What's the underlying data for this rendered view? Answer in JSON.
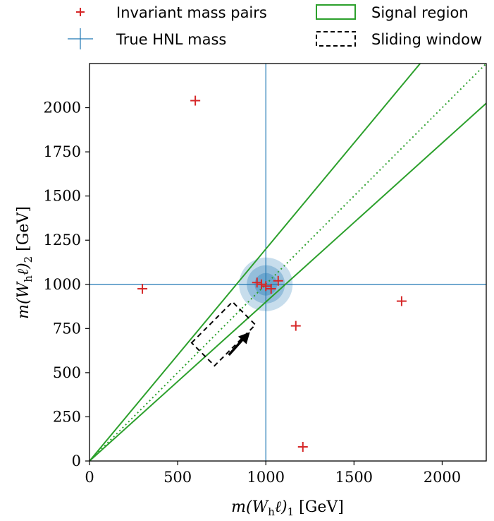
{
  "chart_data": {
    "type": "scatter",
    "xlabel": "m(Wₕℓ)₁ [GeV]",
    "ylabel": "m(Wₕℓ)₂ [GeV]",
    "xlabel_parts": [
      "m(W",
      "h",
      "ℓ)",
      "1",
      " [GeV]"
    ],
    "ylabel_parts": [
      "m(W",
      "h",
      "ℓ)",
      "2",
      " [GeV]"
    ],
    "xlim": [
      0,
      2250
    ],
    "ylim": [
      0,
      2250
    ],
    "xticks": [
      0,
      500,
      1000,
      1500,
      2000
    ],
    "yticks": [
      0,
      250,
      500,
      750,
      1000,
      1250,
      1500,
      1750,
      2000
    ],
    "xtick_labels": [
      "0",
      "500",
      "1000",
      "1500",
      "2000"
    ],
    "ytick_labels": [
      "0",
      "250",
      "500",
      "750",
      "1000",
      "1250",
      "1500",
      "1750",
      "2000"
    ],
    "grid": false,
    "legend_position": "top, above plot (2 columns)",
    "legend": [
      {
        "label": "Invariant mass pairs",
        "kind": "red-plus"
      },
      {
        "label": "True HNL mass",
        "kind": "blue-cross"
      },
      {
        "label": "Signal region",
        "kind": "green-box"
      },
      {
        "label": "Sliding window",
        "kind": "dashed-box"
      }
    ],
    "series": [
      {
        "name": "Invariant mass pairs",
        "color": "#d62728",
        "points": [
          [
            600,
            2040
          ],
          [
            300,
            975
          ],
          [
            1770,
            905
          ],
          [
            1170,
            765
          ],
          [
            1210,
            80
          ],
          [
            950,
            1010
          ],
          [
            975,
            1000
          ],
          [
            1000,
            990
          ],
          [
            1030,
            975
          ],
          [
            1070,
            1020
          ]
        ]
      }
    ],
    "true_mass": {
      "x": 1000,
      "y": 1000,
      "color": "#1f77b4"
    },
    "signal_region": {
      "color": "#2ca02c",
      "upper_slope": 1.2,
      "lower_slope": 0.9,
      "center_slope": 1.0
    },
    "sliding_window": {
      "center": [
        760,
        720
      ],
      "color": "#000000"
    },
    "highlight_circles": {
      "center": [
        1000,
        1000
      ],
      "color": "#1f77b4"
    }
  }
}
